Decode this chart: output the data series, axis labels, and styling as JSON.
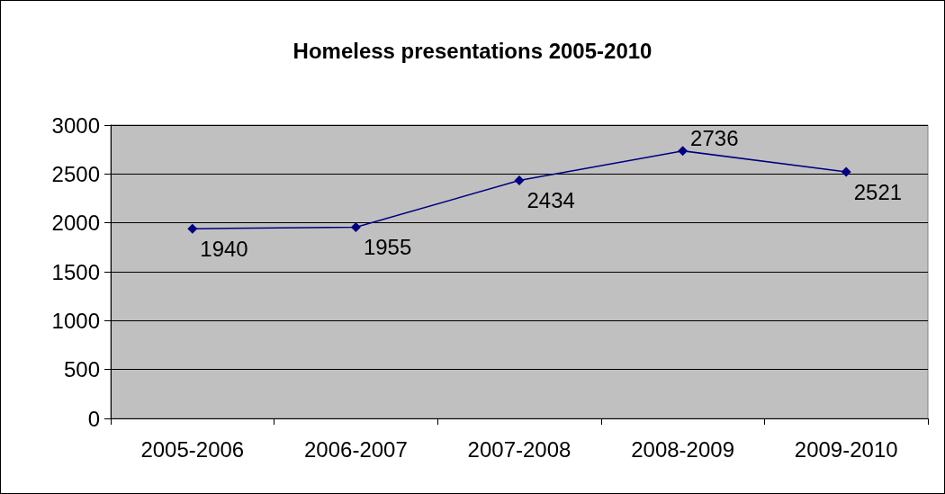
{
  "chart_data": {
    "type": "line",
    "title": "Homeless presentations 2005-2010",
    "categories": [
      "2005-2006",
      "2006-2007",
      "2007-2008",
      "2008-2009",
      "2009-2010"
    ],
    "values": [
      1940,
      1955,
      2434,
      2736,
      2521
    ],
    "color": "#000080",
    "marker": "diamond",
    "line_style": "solid",
    "ylim": [
      0,
      3000
    ],
    "yticks": [
      0,
      500,
      1000,
      1500,
      2000,
      2500,
      3000
    ],
    "grid": "y",
    "data_labels": true
  }
}
